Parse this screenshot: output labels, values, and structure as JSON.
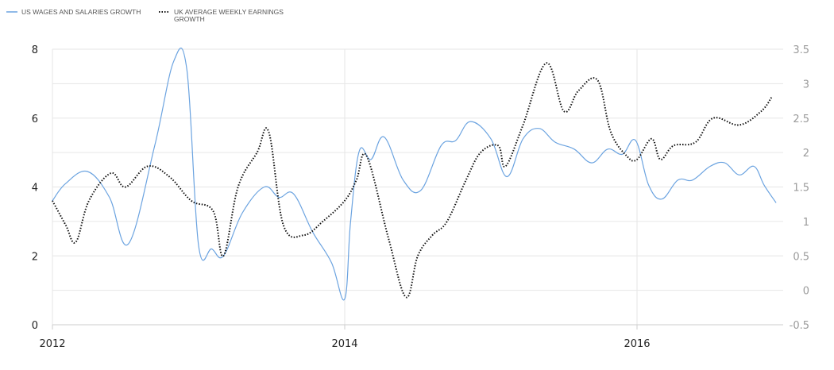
{
  "chart_data": {
    "type": "line",
    "legend": {
      "placement": "top-left",
      "entries": [
        {
          "lines": [
            "US WAGES AND SALARIES GROWTH"
          ]
        },
        {
          "lines": [
            "UK AVERAGE WEEKLY EARNINGS",
            "GROWTH"
          ]
        }
      ]
    },
    "x_axis": {
      "range": [
        2012.0,
        2017.0
      ],
      "ticks": [
        {
          "value": 2012,
          "label": "2012"
        },
        {
          "value": 2014,
          "label": "2014"
        },
        {
          "value": 2016,
          "label": "2016"
        }
      ]
    },
    "y_left": {
      "range": [
        0,
        8
      ],
      "ticks": [
        {
          "value": 0,
          "label": "0"
        },
        {
          "value": 2,
          "label": "2"
        },
        {
          "value": 4,
          "label": "4"
        },
        {
          "value": 6,
          "label": "6"
        },
        {
          "value": 8,
          "label": "8"
        }
      ]
    },
    "y_right": {
      "range": [
        -0.5,
        3.5
      ],
      "ticks": [
        {
          "value": -0.5,
          "label": "-0.5"
        },
        {
          "value": 0,
          "label": "0"
        },
        {
          "value": 0.5,
          "label": "0.5"
        },
        {
          "value": 1,
          "label": "1"
        },
        {
          "value": 1.5,
          "label": "1.5"
        },
        {
          "value": 2,
          "label": "2"
        },
        {
          "value": 2.5,
          "label": "2.5"
        },
        {
          "value": 3,
          "label": "3"
        },
        {
          "value": 3.5,
          "label": "3.5"
        }
      ]
    },
    "grid": true,
    "series": [
      {
        "name": "US WAGES AND SALARIES GROWTH",
        "axis": "left",
        "color": "#6ba3e0",
        "style": "solid",
        "x": [
          2012.0,
          2012.09,
          2012.24,
          2012.39,
          2012.52,
          2012.7,
          2012.83,
          2012.92,
          2013.0,
          2013.09,
          2013.17,
          2013.3,
          2013.45,
          2013.55,
          2013.65,
          2013.78,
          2013.91,
          2014.0,
          2014.04,
          2014.1,
          2014.18,
          2014.27,
          2014.4,
          2014.52,
          2014.66,
          2014.76,
          2014.86,
          2015.0,
          2015.11,
          2015.22,
          2015.33,
          2015.44,
          2015.57,
          2015.69,
          2015.8,
          2015.9,
          2015.99,
          2016.08,
          2016.17,
          2016.28,
          2016.38,
          2016.5,
          2016.6,
          2016.7,
          2016.8,
          2016.87,
          2016.95
        ],
        "values": [
          3.6,
          4.1,
          4.45,
          3.7,
          2.35,
          5.2,
          7.65,
          7.4,
          2.3,
          2.2,
          2.0,
          3.25,
          4.0,
          3.7,
          3.8,
          2.7,
          1.8,
          0.75,
          3.0,
          5.05,
          4.8,
          5.45,
          4.2,
          3.9,
          5.2,
          5.35,
          5.9,
          5.4,
          4.3,
          5.4,
          5.7,
          5.3,
          5.1,
          4.7,
          5.1,
          4.95,
          5.35,
          4.05,
          3.65,
          4.2,
          4.2,
          4.6,
          4.7,
          4.35,
          4.6,
          4.05,
          3.55
        ]
      },
      {
        "name": "UK AVERAGE WEEKLY EARNINGS GROWTH",
        "axis": "right",
        "color": "#111111",
        "style": "dotted",
        "x": [
          2012.0,
          2012.09,
          2012.16,
          2012.25,
          2012.4,
          2012.5,
          2012.65,
          2012.8,
          2012.95,
          2013.1,
          2013.17,
          2013.27,
          2013.4,
          2013.48,
          2013.58,
          2013.72,
          2013.85,
          2014.0,
          2014.08,
          2014.15,
          2014.3,
          2014.42,
          2014.5,
          2014.6,
          2014.7,
          2014.83,
          2014.93,
          2015.05,
          2015.1,
          2015.22,
          2015.38,
          2015.5,
          2015.6,
          2015.73,
          2015.82,
          2015.93,
          2016.0,
          2016.1,
          2016.16,
          2016.25,
          2016.4,
          2016.52,
          2016.7,
          2016.85,
          2016.92
        ],
        "values": [
          1.3,
          0.95,
          0.7,
          1.3,
          1.7,
          1.5,
          1.8,
          1.65,
          1.3,
          1.15,
          0.5,
          1.5,
          2.0,
          2.3,
          0.95,
          0.8,
          1.0,
          1.3,
          1.6,
          1.95,
          0.75,
          -0.1,
          0.5,
          0.8,
          1.0,
          1.6,
          2.0,
          2.1,
          1.8,
          2.4,
          3.3,
          2.6,
          2.9,
          3.05,
          2.3,
          1.95,
          1.9,
          2.2,
          1.9,
          2.1,
          2.15,
          2.5,
          2.4,
          2.6,
          2.8
        ]
      }
    ]
  }
}
